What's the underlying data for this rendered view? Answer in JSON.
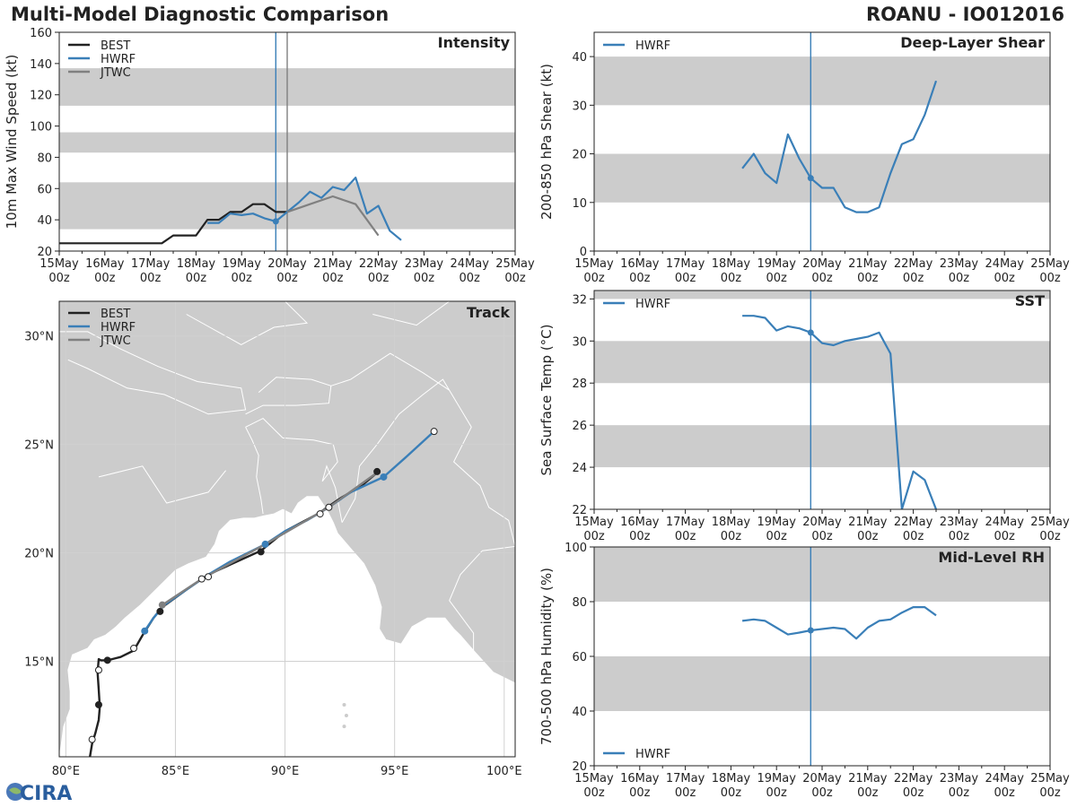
{
  "header": {
    "title": "Multi-Model Diagnostic Comparison",
    "storm": "ROANU - IO012016"
  },
  "logo_text": "CIRA",
  "colors": {
    "best": "#222222",
    "hwrf": "#3a7fb8",
    "jtwc": "#808080",
    "band": "#cccccc",
    "land": "#cccccc",
    "grid": "#d0d0d0"
  },
  "time_axis": {
    "tick_labels": [
      [
        "15May",
        "00z"
      ],
      [
        "16May",
        "00z"
      ],
      [
        "17May",
        "00z"
      ],
      [
        "18May",
        "00z"
      ],
      [
        "19May",
        "00z"
      ],
      [
        "20May",
        "00z"
      ],
      [
        "21May",
        "00z"
      ],
      [
        "22May",
        "00z"
      ],
      [
        "23May",
        "00z"
      ],
      [
        "24May",
        "00z"
      ],
      [
        "25May",
        "00z"
      ]
    ],
    "range_days": [
      15,
      25
    ]
  },
  "chart_data": [
    {
      "name": "intensity",
      "type": "line",
      "title": "Intensity",
      "ylabel": "10m Max Wind Speed (kt)",
      "ylim": [
        20,
        160
      ],
      "yticks": [
        20,
        40,
        60,
        80,
        100,
        120,
        140,
        160
      ],
      "bands": [
        [
          34,
          64
        ],
        [
          83,
          96
        ],
        [
          113,
          137
        ]
      ],
      "vlines": [
        {
          "x": 19.75,
          "color": "hwrf"
        },
        {
          "x": 20.0,
          "color": "jtwc"
        }
      ],
      "legend": [
        "BEST",
        "HWRF",
        "JTWC"
      ],
      "series": [
        {
          "name": "BEST",
          "color": "best",
          "x": [
            15.0,
            15.25,
            15.5,
            15.75,
            16.0,
            16.25,
            16.5,
            16.75,
            17.0,
            17.25,
            17.5,
            17.75,
            18.0,
            18.25,
            18.5,
            18.75,
            19.0,
            19.25,
            19.5,
            19.75,
            20.0
          ],
          "y": [
            25,
            25,
            25,
            25,
            25,
            25,
            25,
            25,
            25,
            25,
            30,
            30,
            30,
            40,
            40,
            45,
            45,
            50,
            50,
            45,
            45
          ]
        },
        {
          "name": "HWRF",
          "color": "hwrf",
          "marker_x": 19.75,
          "x": [
            18.25,
            18.5,
            18.75,
            19.0,
            19.25,
            19.5,
            19.75,
            20.0,
            20.25,
            20.5,
            20.75,
            21.0,
            21.25,
            21.5,
            21.75,
            22.0,
            22.25,
            22.5
          ],
          "y": [
            38,
            38,
            44,
            43,
            44,
            41,
            39,
            45,
            51,
            58,
            54,
            61,
            59,
            67,
            44,
            49,
            33,
            27
          ]
        },
        {
          "name": "JTWC",
          "color": "jtwc",
          "x": [
            20.0,
            20.5,
            21.0,
            21.5,
            22.0
          ],
          "y": [
            45,
            50,
            55,
            50,
            30
          ]
        }
      ]
    },
    {
      "name": "shear",
      "type": "line",
      "title": "Deep-Layer Shear",
      "ylabel": "200-850 hPa Shear (kt)",
      "ylim": [
        0,
        45
      ],
      "yticks": [
        0,
        10,
        20,
        30,
        40
      ],
      "bands": [
        [
          10,
          20
        ],
        [
          30,
          40
        ]
      ],
      "vlines": [
        {
          "x": 19.75,
          "color": "hwrf"
        }
      ],
      "legend": [
        "HWRF"
      ],
      "series": [
        {
          "name": "HWRF",
          "color": "hwrf",
          "marker_x": 19.75,
          "x": [
            18.25,
            18.5,
            18.75,
            19.0,
            19.25,
            19.5,
            19.75,
            20.0,
            20.25,
            20.5,
            20.75,
            21.0,
            21.25,
            21.5,
            21.75,
            22.0,
            22.25,
            22.5
          ],
          "y": [
            17,
            20,
            16,
            14,
            24,
            19,
            15,
            13,
            13,
            9,
            8,
            8,
            9,
            16,
            22,
            23,
            28,
            35
          ]
        }
      ]
    },
    {
      "name": "sst",
      "type": "line",
      "title": "SST",
      "ylabel": "Sea Surface Temp (°C)",
      "ylim": [
        22,
        32.4
      ],
      "yticks": [
        22,
        24,
        26,
        28,
        30,
        32
      ],
      "bands": [
        [
          24,
          26
        ],
        [
          28,
          30
        ],
        [
          32,
          34
        ]
      ],
      "vlines": [
        {
          "x": 19.75,
          "color": "hwrf"
        }
      ],
      "legend": [
        "HWRF"
      ],
      "series": [
        {
          "name": "HWRF",
          "color": "hwrf",
          "marker_x": 19.75,
          "x": [
            18.25,
            18.5,
            18.75,
            19.0,
            19.25,
            19.5,
            19.75,
            20.0,
            20.25,
            20.5,
            20.75,
            21.0,
            21.25,
            21.5,
            21.75,
            22.0,
            22.25,
            22.5
          ],
          "y": [
            31.2,
            31.2,
            31.1,
            30.5,
            30.7,
            30.6,
            30.4,
            29.9,
            29.8,
            30.0,
            30.1,
            30.2,
            30.4,
            29.4,
            22.0,
            23.8,
            23.4,
            22.0
          ]
        }
      ]
    },
    {
      "name": "rh",
      "type": "line",
      "title": "Mid-Level RH",
      "ylabel": "700-500 hPa Humidity (%)",
      "ylim": [
        20,
        100
      ],
      "yticks": [
        20,
        40,
        60,
        80,
        100
      ],
      "bands": [
        [
          40,
          60
        ],
        [
          80,
          100
        ]
      ],
      "vlines": [
        {
          "x": 19.75,
          "color": "hwrf"
        }
      ],
      "legend": [
        "HWRF"
      ],
      "legend_pos": "bottom-left",
      "series": [
        {
          "name": "HWRF",
          "color": "hwrf",
          "marker_x": 19.75,
          "x": [
            18.25,
            18.5,
            18.75,
            19.0,
            19.25,
            19.5,
            19.75,
            20.0,
            20.25,
            20.5,
            20.75,
            21.0,
            21.25,
            21.5,
            21.75,
            22.0,
            22.25,
            22.5
          ],
          "y": [
            73,
            73.5,
            73,
            70.5,
            68,
            68.7,
            69.5,
            70,
            70.5,
            70,
            66.5,
            70.5,
            73,
            73.5,
            76,
            78,
            78,
            75
          ]
        }
      ]
    },
    {
      "name": "track",
      "type": "scatter",
      "title": "Track",
      "lon_range": [
        79.7,
        100.5
      ],
      "lat_range": [
        10.6,
        31.6
      ],
      "lon_ticks": [
        80,
        85,
        90,
        95,
        100
      ],
      "lon_tick_labels": [
        "80°E",
        "85°E",
        "90°E",
        "95°E",
        "100°E"
      ],
      "lat_ticks": [
        15,
        20,
        25,
        30
      ],
      "lat_tick_labels": [
        "15°N",
        "20°N",
        "25°N",
        "30°N"
      ],
      "legend": [
        "BEST",
        "HWRF",
        "JTWC"
      ],
      "series": [
        {
          "name": "BEST",
          "color": "best",
          "lon": [
            81.1,
            81.2,
            81.35,
            81.5,
            81.55,
            81.5,
            81.45,
            81.5,
            81.6,
            81.9,
            82.5,
            83.1,
            83.5,
            84.0,
            84.4,
            85.5,
            86.5,
            88.9,
            90.0,
            91.5,
            92.5,
            93.5,
            94.2
          ],
          "lat": [
            10.6,
            11.2,
            11.7,
            12.3,
            12.9,
            13.7,
            14.5,
            15.1,
            15.05,
            15.05,
            15.2,
            15.5,
            16.2,
            17.0,
            17.5,
            18.3,
            19.0,
            20.1,
            21.0,
            21.8,
            22.5,
            23.1,
            23.7
          ],
          "markers": [
            {
              "lon": 81.2,
              "lat": 11.4,
              "filled": false
            },
            {
              "lon": 81.5,
              "lat": 13.0,
              "filled": true
            },
            {
              "lon": 81.5,
              "lat": 14.6,
              "filled": false
            },
            {
              "lon": 81.9,
              "lat": 15.05,
              "filled": true
            },
            {
              "lon": 83.1,
              "lat": 15.6,
              "filled": false
            },
            {
              "lon": 84.3,
              "lat": 17.3,
              "filled": true
            },
            {
              "lon": 86.5,
              "lat": 18.9,
              "filled": false
            },
            {
              "lon": 88.9,
              "lat": 20.05,
              "filled": true
            },
            {
              "lon": 91.6,
              "lat": 21.8,
              "filled": false
            },
            {
              "lon": 94.2,
              "lat": 23.75,
              "filled": true
            }
          ]
        },
        {
          "name": "HWRF",
          "color": "hwrf",
          "lon": [
            83.6,
            84.0,
            84.5,
            85.5,
            86.5,
            87.5,
            89.1,
            90.0,
            91.0,
            92.0,
            93.0,
            94.5,
            95.5,
            96.8
          ],
          "lat": [
            16.4,
            17.0,
            17.6,
            18.3,
            19.0,
            19.6,
            20.4,
            21.0,
            21.5,
            22.1,
            22.8,
            23.5,
            24.4,
            25.6
          ],
          "markers": [
            {
              "lon": 83.6,
              "lat": 16.4,
              "filled": true
            },
            {
              "lon": 86.2,
              "lat": 18.8,
              "filled": false
            },
            {
              "lon": 89.1,
              "lat": 20.4,
              "filled": true
            },
            {
              "lon": 92.0,
              "lat": 22.1,
              "filled": false
            },
            {
              "lon": 94.5,
              "lat": 23.5,
              "filled": true
            },
            {
              "lon": 96.8,
              "lat": 25.6,
              "filled": false
            }
          ]
        },
        {
          "name": "JTWC",
          "color": "jtwc",
          "lon": [
            84.4,
            86.2,
            89.1,
            92.0,
            94.2
          ],
          "lat": [
            17.6,
            18.8,
            20.4,
            22.1,
            23.7
          ],
          "markers": [
            {
              "lon": 84.4,
              "lat": 17.6,
              "filled": true
            }
          ]
        }
      ]
    }
  ]
}
